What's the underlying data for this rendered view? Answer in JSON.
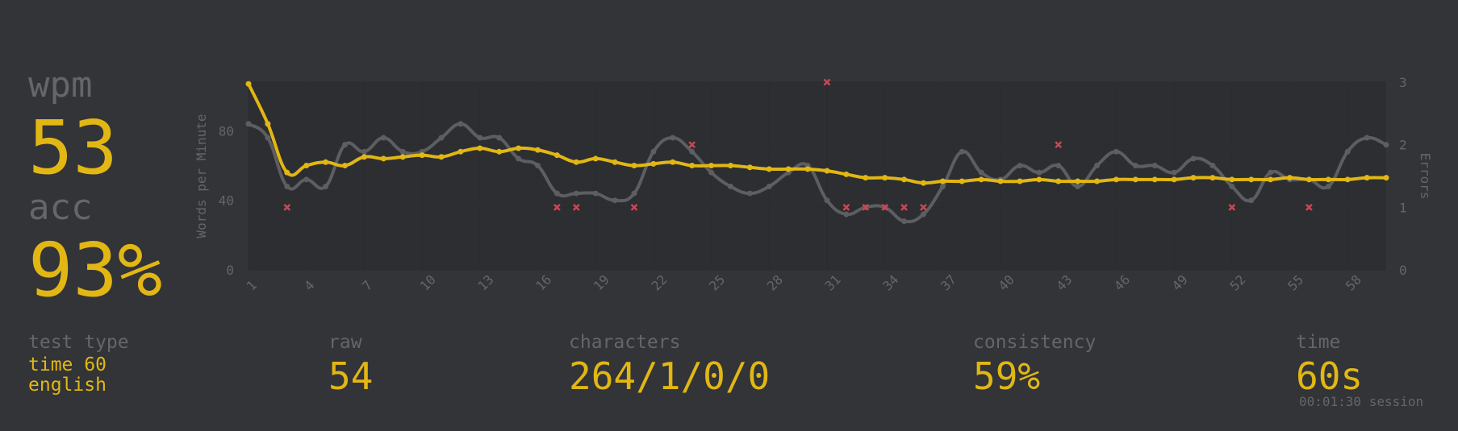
{
  "stats": {
    "wpm_label": "wpm",
    "wpm_value": "53",
    "acc_label": "acc",
    "acc_value": "93%",
    "test_type_label": "test type",
    "test_type_line1": "time 60",
    "test_type_line2": "english",
    "raw_label": "raw",
    "raw_value": "54",
    "characters_label": "characters",
    "characters_value": "264/1/0/0",
    "consistency_label": "consistency",
    "consistency_value": "59%",
    "time_label": "time",
    "time_value": "60s",
    "session": "00:01:30 session"
  },
  "colors": {
    "background": "#323437",
    "accent": "#e2b714",
    "sub": "#646669",
    "raw_line": "#5c5e61",
    "error": "#ca4754"
  },
  "chart_data": {
    "type": "line",
    "xlabel": "",
    "ylabel": "Words per Minute",
    "y2label": "Errors",
    "x": [
      1,
      2,
      3,
      4,
      5,
      6,
      7,
      8,
      9,
      10,
      11,
      12,
      13,
      14,
      15,
      16,
      17,
      18,
      19,
      20,
      21,
      22,
      23,
      24,
      25,
      26,
      27,
      28,
      29,
      30,
      31,
      32,
      33,
      34,
      35,
      36,
      37,
      38,
      39,
      40,
      41,
      42,
      43,
      44,
      45,
      46,
      47,
      48,
      49,
      50,
      51,
      52,
      53,
      54,
      55,
      56,
      57,
      58,
      59,
      60
    ],
    "x_ticks": [
      "1",
      "4",
      "7",
      "10",
      "13",
      "16",
      "19",
      "22",
      "25",
      "28",
      "31",
      "34",
      "37",
      "40",
      "43",
      "46",
      "49",
      "52",
      "55",
      "58"
    ],
    "y_ticks": [
      "0",
      "40",
      "80"
    ],
    "y2_ticks": [
      "0",
      "1",
      "2",
      "3"
    ],
    "ylim": [
      0,
      108
    ],
    "y2lim": [
      0,
      3
    ],
    "grid": true,
    "series": [
      {
        "name": "wpm",
        "axis": "left",
        "values": [
          107,
          84,
          56,
          60,
          62,
          60,
          65,
          64,
          65,
          66,
          65,
          68,
          70,
          68,
          70,
          69,
          66,
          62,
          64,
          62,
          60,
          61,
          62,
          60,
          60,
          60,
          59,
          58,
          58,
          58,
          57,
          55,
          53,
          53,
          52,
          50,
          51,
          51,
          52,
          51,
          51,
          52,
          51,
          51,
          51,
          52,
          52,
          52,
          52,
          53,
          53,
          52,
          52,
          52,
          53,
          52,
          52,
          52,
          53,
          53
        ]
      },
      {
        "name": "raw",
        "axis": "left",
        "values": [
          84,
          76,
          48,
          52,
          48,
          72,
          68,
          76,
          68,
          68,
          76,
          84,
          76,
          76,
          64,
          60,
          44,
          44,
          44,
          40,
          44,
          68,
          76,
          68,
          56,
          48,
          44,
          48,
          56,
          60,
          40,
          32,
          36,
          36,
          28,
          32,
          48,
          68,
          56,
          52,
          60,
          56,
          60,
          48,
          60,
          68,
          60,
          60,
          56,
          64,
          60,
          48,
          40,
          56,
          52,
          52,
          48,
          68,
          76,
          72
        ]
      },
      {
        "name": "errors",
        "axis": "right",
        "points": [
          [
            3,
            1
          ],
          [
            17,
            1
          ],
          [
            18,
            1
          ],
          [
            21,
            1
          ],
          [
            24,
            2
          ],
          [
            31,
            3
          ],
          [
            32,
            1
          ],
          [
            33,
            1
          ],
          [
            34,
            1
          ],
          [
            35,
            1
          ],
          [
            36,
            1
          ],
          [
            43,
            2
          ],
          [
            52,
            1
          ],
          [
            56,
            1
          ]
        ]
      }
    ]
  }
}
